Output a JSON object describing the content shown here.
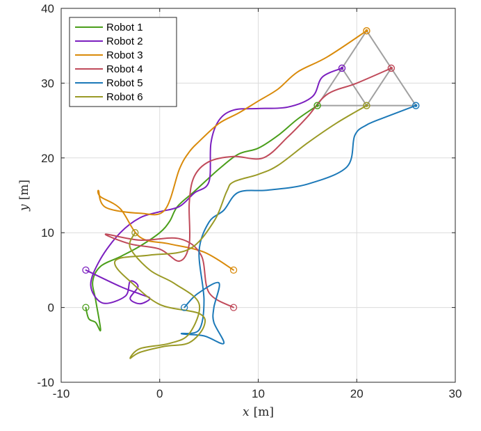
{
  "chart_data": {
    "type": "line",
    "title": "",
    "xlabel": {
      "var": "x",
      "unit": "[m]"
    },
    "ylabel": {
      "var": "y",
      "unit": "[m]"
    },
    "xlim": [
      -10,
      30
    ],
    "ylim": [
      -10,
      40
    ],
    "xticks": [
      "-10",
      "0",
      "10",
      "20",
      "30"
    ],
    "yticks": [
      "-10",
      "0",
      "10",
      "20",
      "30",
      "40"
    ],
    "grid": true,
    "legend_position": "top-left",
    "formation": {
      "color": "#a0a0a0",
      "vertices": [
        [
          16,
          27
        ],
        [
          21,
          37
        ],
        [
          26,
          27
        ]
      ],
      "edges": [
        [
          16,
          27,
          21,
          37
        ],
        [
          21,
          37,
          26,
          27
        ],
        [
          26,
          27,
          16,
          27
        ],
        [
          18.5,
          32,
          21,
          27
        ],
        [
          23.5,
          32,
          21,
          27
        ]
      ]
    },
    "series": [
      {
        "name": "Robot 1",
        "color": "#4a9e1a",
        "start": [
          -7.5,
          0
        ],
        "goal": [
          16,
          27
        ],
        "path": [
          [
            -7.5,
            0
          ],
          [
            -7.2,
            -1.5
          ],
          [
            -6.5,
            -2
          ],
          [
            -6,
            -3
          ],
          [
            -6.5,
            1
          ],
          [
            -6.8,
            3.5
          ],
          [
            -6,
            5.5
          ],
          [
            -4,
            6.8
          ],
          [
            -2,
            8.2
          ],
          [
            0,
            10
          ],
          [
            1,
            11.5
          ],
          [
            1.8,
            13.5
          ],
          [
            3.5,
            15.5
          ],
          [
            6,
            18.5
          ],
          [
            8,
            20.5
          ],
          [
            10,
            21.3
          ],
          [
            12,
            23
          ],
          [
            14,
            25.2
          ],
          [
            16,
            27
          ]
        ]
      },
      {
        "name": "Robot 2",
        "color": "#7b1fbf",
        "start": [
          -7.5,
          5
        ],
        "goal": [
          18.5,
          32
        ],
        "path": [
          [
            -7.5,
            5
          ],
          [
            -4,
            2.8
          ],
          [
            -2,
            1.8
          ],
          [
            -1,
            1.2
          ],
          [
            -2,
            0.5
          ],
          [
            -3,
            1.2
          ],
          [
            -2.2,
            2.8
          ],
          [
            -3,
            3.5
          ],
          [
            -3.5,
            1.5
          ],
          [
            -5.8,
            0.6
          ],
          [
            -7,
            3
          ],
          [
            -6,
            6.5
          ],
          [
            -4,
            10
          ],
          [
            -2,
            12
          ],
          [
            0,
            12.8
          ],
          [
            2,
            13.5
          ],
          [
            3.5,
            15.3
          ],
          [
            5,
            16.8
          ],
          [
            5.2,
            22
          ],
          [
            6,
            25
          ],
          [
            7.5,
            26.4
          ],
          [
            10,
            26.6
          ],
          [
            13,
            26.8
          ],
          [
            15.5,
            28.2
          ],
          [
            16.5,
            30.8
          ],
          [
            18.5,
            32
          ]
        ]
      },
      {
        "name": "Robot 3",
        "color": "#d98a0a",
        "start": [
          7.5,
          5
        ],
        "goal": [
          21,
          37
        ],
        "path": [
          [
            7.5,
            5
          ],
          [
            4.5,
            7.4
          ],
          [
            1,
            8.5
          ],
          [
            -2,
            9.4
          ],
          [
            -4,
            13.2
          ],
          [
            -6,
            14.8
          ],
          [
            -6.2,
            15.6
          ],
          [
            -5.5,
            13.4
          ],
          [
            -2,
            12.6
          ],
          [
            0.5,
            13
          ],
          [
            2,
            18.5
          ],
          [
            3,
            20.8
          ],
          [
            4,
            22.2
          ],
          [
            6,
            24.6
          ],
          [
            8,
            26
          ],
          [
            10,
            27.6
          ],
          [
            12,
            29.2
          ],
          [
            14,
            31.5
          ],
          [
            17,
            33.5
          ],
          [
            21,
            37
          ]
        ]
      },
      {
        "name": "Robot 4",
        "color": "#c04a5a",
        "start": [
          7.5,
          0
        ],
        "goal": [
          23.5,
          32
        ],
        "path": [
          [
            7.5,
            0
          ],
          [
            5,
            2
          ],
          [
            4.2,
            7
          ],
          [
            2,
            9.2
          ],
          [
            -2,
            9
          ],
          [
            -5.5,
            9.8
          ],
          [
            -3,
            8.5
          ],
          [
            0,
            7.8
          ],
          [
            2,
            6.2
          ],
          [
            3,
            8.5
          ],
          [
            3,
            14
          ],
          [
            3.5,
            17.5
          ],
          [
            5,
            19.5
          ],
          [
            7.5,
            20.2
          ],
          [
            10.5,
            20
          ],
          [
            13,
            22.8
          ],
          [
            15,
            25.5
          ],
          [
            17,
            28.5
          ],
          [
            20,
            30
          ],
          [
            23.5,
            32
          ]
        ]
      },
      {
        "name": "Robot 5",
        "color": "#1c79b8",
        "start": [
          2.5,
          0
        ],
        "goal": [
          26,
          27
        ],
        "path": [
          [
            2.5,
            0
          ],
          [
            3.8,
            1.8
          ],
          [
            6,
            3.3
          ],
          [
            5.5,
            0
          ],
          [
            5.5,
            -2
          ],
          [
            6.5,
            -4.8
          ],
          [
            4.5,
            -3.8
          ],
          [
            2.2,
            -3.5
          ],
          [
            4,
            -3
          ],
          [
            4.5,
            1
          ],
          [
            4,
            7.5
          ],
          [
            5,
            11.4
          ],
          [
            6.5,
            13
          ],
          [
            8,
            15.4
          ],
          [
            11,
            15.7
          ],
          [
            15,
            16.5
          ],
          [
            19,
            18.8
          ],
          [
            19.8,
            23
          ],
          [
            21,
            24.4
          ],
          [
            23,
            25.5
          ],
          [
            26,
            27
          ]
        ]
      },
      {
        "name": "Robot 6",
        "color": "#9a9a26",
        "start": [
          -2.5,
          10
        ],
        "goal": [
          21,
          27
        ],
        "path": [
          [
            -2.5,
            10
          ],
          [
            -3,
            8
          ],
          [
            -1,
            5
          ],
          [
            1.5,
            3.2
          ],
          [
            4,
            0.5
          ],
          [
            3,
            -3.5
          ],
          [
            1,
            -4.8
          ],
          [
            -2,
            -5.5
          ],
          [
            -3,
            -6.8
          ],
          [
            -2,
            -6
          ],
          [
            0.5,
            -5.2
          ],
          [
            3,
            -4.7
          ],
          [
            4.5,
            -2.5
          ],
          [
            4,
            -0.8
          ],
          [
            0,
            0.4
          ],
          [
            -3,
            3.5
          ],
          [
            -4.5,
            5.6
          ],
          [
            -4,
            6.6
          ],
          [
            -1,
            7
          ],
          [
            3,
            7.8
          ],
          [
            5.5,
            11.5
          ],
          [
            6.8,
            15.5
          ],
          [
            7.5,
            16.8
          ],
          [
            10,
            17.8
          ],
          [
            12,
            19
          ],
          [
            15,
            22
          ],
          [
            18,
            24.7
          ],
          [
            21,
            27
          ]
        ]
      }
    ]
  }
}
